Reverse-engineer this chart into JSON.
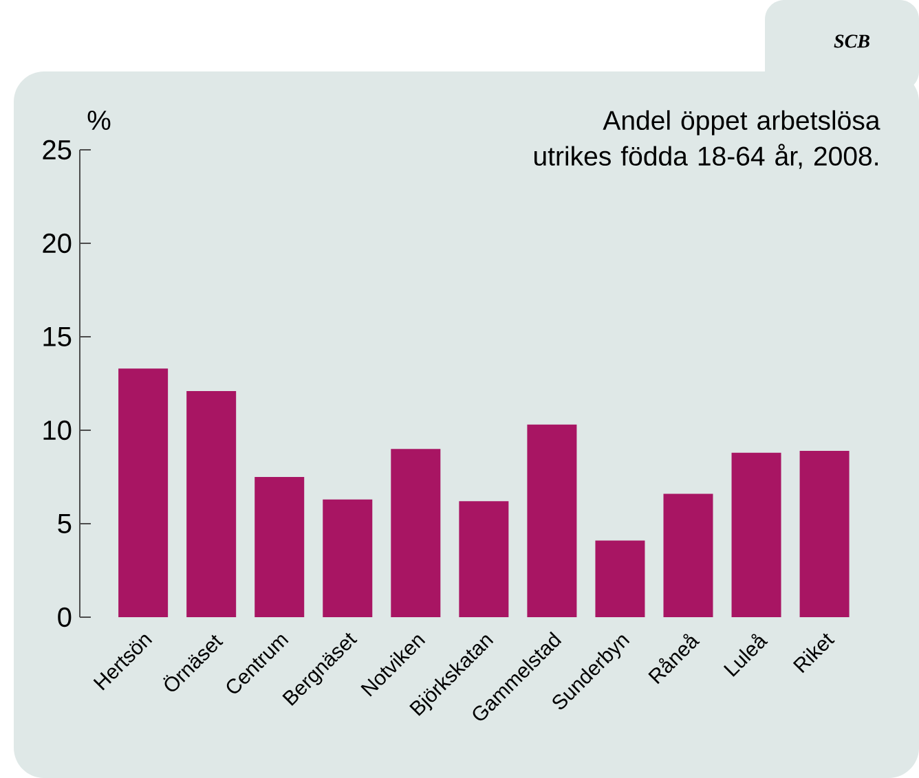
{
  "chart_data": {
    "type": "bar",
    "title": "Andel öppet arbetslösa utrikes födda 18-64 år, 2008.",
    "ylabel": "%",
    "categories": [
      "Hertsön",
      "Örnäset",
      "Centrum",
      "Bergnäset",
      "Notviken",
      "Björkskatan",
      "Gammelstad",
      "Sunderbyn",
      "Råneå",
      "Luleå",
      "Riket"
    ],
    "values": [
      13.3,
      12.1,
      7.5,
      6.3,
      9.0,
      6.2,
      10.3,
      4.1,
      6.6,
      8.8,
      8.9
    ],
    "color": "#a81563",
    "ylim": [
      0,
      25
    ],
    "yticks": [
      0,
      5,
      10,
      15,
      20,
      25
    ],
    "grid": false,
    "annotations": [
      "SCB"
    ]
  }
}
